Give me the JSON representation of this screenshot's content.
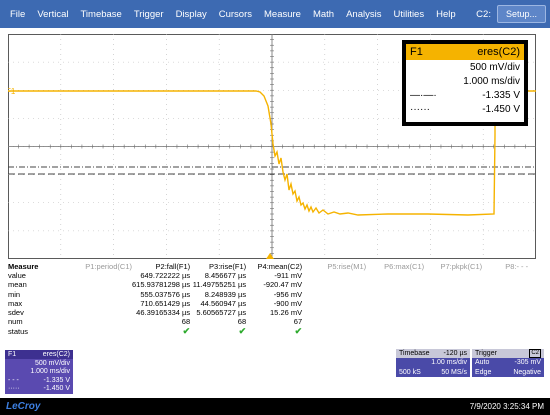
{
  "menu": {
    "items": [
      "File",
      "Vertical",
      "Timebase",
      "Trigger",
      "Display",
      "Cursors",
      "Measure",
      "Math",
      "Analysis",
      "Utilities",
      "Help"
    ],
    "channel": "C2:",
    "setup_label": "Setup..."
  },
  "colors": {
    "trace": "#f5b300",
    "menubar": "#3d6ab2",
    "grid": "#7a7a7a"
  },
  "trace_label": "F1",
  "channel_box": {
    "name": "F1",
    "source": "eres(C2)",
    "scale": "500 mV/div",
    "timebase": "1.000 ms/div",
    "dashdot_value": "-1.335 V",
    "dotted_value": "-1.450 V",
    "dashdot_glyph": "—·—·",
    "dotted_glyph": "······"
  },
  "measure": {
    "title": "Measure",
    "headers": [
      "P1:period(C1)",
      "P2:fall(F1)",
      "P3:rise(F1)",
      "P4:mean(C2)",
      "P5:rise(M1)",
      "P6:max(C1)",
      "P7:pkpk(C1)",
      "P8:- - -"
    ],
    "rows": [
      {
        "label": "value",
        "p2": "649.722222 µs",
        "p3": "8.456677 µs",
        "p4": "-911 mV"
      },
      {
        "label": "mean",
        "p2": "615.93781298 µs",
        "p3": "11.49755251 µs",
        "p4": "-920.47 mV"
      },
      {
        "label": "min",
        "p2": "555.037576 µs",
        "p3": "8.248939 µs",
        "p4": "-956 mV"
      },
      {
        "label": "max",
        "p2": "710.651429 µs",
        "p3": "44.560947 µs",
        "p4": "-900 mV"
      },
      {
        "label": "sdev",
        "p2": "46.39165334 µs",
        "p3": "5.60565727 µs",
        "p4": "15.26 mV"
      },
      {
        "label": "num",
        "p2": "68",
        "p3": "68",
        "p4": "67"
      },
      {
        "label": "status",
        "p2": "✔",
        "p3": "✔",
        "p4": "✔"
      }
    ]
  },
  "f1_box": {
    "name": "F1",
    "source": "eres(C2)",
    "scale": "500 mV/div",
    "timebase": "1.000 ms/div",
    "dashdot_value": "-1.335 V",
    "dotted_value": "-1.450 V",
    "dashdot_glyph": "- - -",
    "dotted_glyph": "·····"
  },
  "timebase_box": {
    "title": "Timebase",
    "offset": "-120 µs",
    "per_div": "1.00 ms/div",
    "samples": "500 kS",
    "rate": "50 MS/s"
  },
  "trigger_box": {
    "title": "Trigger",
    "mode": "Auto",
    "level": "-305 mV",
    "type": "Edge",
    "slope": "Negative",
    "icon": "C2"
  },
  "status": {
    "logo": "LeCroy",
    "datetime": "7/9/2020 3:25:34 PM"
  }
}
